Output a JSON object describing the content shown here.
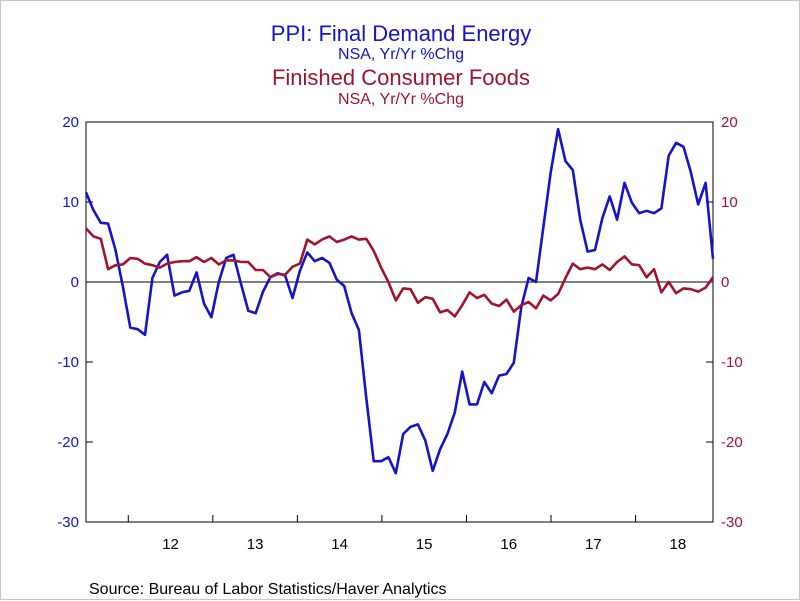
{
  "chart_data": {
    "type": "line",
    "titles": [
      {
        "title": "PPI: Final Demand Energy",
        "subtitle": "NSA, Yr/Yr %Chg",
        "color": "#1414c8"
      },
      {
        "title": "Finished Consumer Foods",
        "subtitle": "NSA, Yr/Yr %Chg",
        "color": "#a0142d"
      }
    ],
    "source": "Source:  Bureau of Labor Statistics/Haver Analytics",
    "x_start": 2011.5,
    "x_end": 2018.916,
    "x_ticks": [
      "12",
      "13",
      "14",
      "15",
      "16",
      "17",
      "18"
    ],
    "x_tick_values": [
      2012,
      2013,
      2014,
      2015,
      2016,
      2017,
      2018
    ],
    "ylim": [
      -30,
      20
    ],
    "y_ticks": [
      20,
      10,
      0,
      -10,
      -20,
      -30
    ],
    "y_ticks_left_color": "#1414c8",
    "y_ticks_right_color": "#a0142d",
    "zero_line": true,
    "series": [
      {
        "name": "PPI: Final Demand Energy",
        "color": "#1414c8",
        "values": [
          11.2,
          9.0,
          7.4,
          7.3,
          4.0,
          -0.6,
          -5.7,
          -5.9,
          -6.6,
          0.5,
          2.5,
          3.4,
          -1.7,
          -1.3,
          -1.1,
          1.2,
          -2.7,
          -4.4,
          0.0,
          3.0,
          3.4,
          -0.2,
          -3.6,
          -3.9,
          -1.2,
          0.6,
          1.1,
          0.8,
          -2.0,
          1.4,
          3.7,
          2.6,
          3.0,
          2.4,
          0.3,
          -0.5,
          -3.9,
          -6.0,
          -14.5,
          -22.4,
          -22.4,
          -21.9,
          -23.9,
          -19.0,
          -18.1,
          -17.8,
          -19.8,
          -23.6,
          -20.9,
          -19.0,
          -16.3,
          -11.2,
          -15.3,
          -15.3,
          -12.5,
          -13.9,
          -11.7,
          -11.5,
          -10.1,
          -3.2,
          0.5,
          0.0,
          6.8,
          13.7,
          19.1,
          15.1,
          14.0,
          7.8,
          3.8,
          4.0,
          8.0,
          10.7,
          7.8,
          12.4,
          9.9,
          8.6,
          8.9,
          8.6,
          9.2,
          15.8,
          17.4,
          16.9,
          13.7,
          9.7,
          12.4,
          2.9
        ]
      },
      {
        "name": "Finished Consumer Foods",
        "color": "#a0142d",
        "values": [
          6.7,
          5.7,
          5.4,
          1.6,
          2.1,
          2.2,
          3.0,
          2.9,
          2.3,
          2.1,
          1.8,
          2.3,
          2.5,
          2.6,
          2.6,
          3.1,
          2.5,
          3.0,
          2.2,
          2.7,
          2.7,
          2.5,
          2.5,
          1.5,
          1.5,
          0.6,
          1.0,
          0.9,
          1.9,
          2.3,
          5.3,
          4.7,
          5.3,
          5.7,
          5.0,
          5.3,
          5.7,
          5.3,
          5.4,
          3.9,
          1.8,
          0.0,
          -2.3,
          -0.8,
          -0.9,
          -2.6,
          -1.9,
          -2.1,
          -3.8,
          -3.5,
          -4.3,
          -2.9,
          -1.3,
          -2.0,
          -1.6,
          -2.7,
          -3.0,
          -2.2,
          -3.7,
          -2.9,
          -2.5,
          -3.3,
          -1.7,
          -2.3,
          -1.5,
          0.5,
          2.3,
          1.6,
          1.8,
          1.6,
          2.2,
          1.5,
          2.5,
          3.2,
          2.2,
          2.1,
          0.6,
          1.6,
          -1.3,
          0.0,
          -1.4,
          -0.8,
          -0.9,
          -1.2,
          -0.7,
          0.6
        ]
      }
    ]
  }
}
